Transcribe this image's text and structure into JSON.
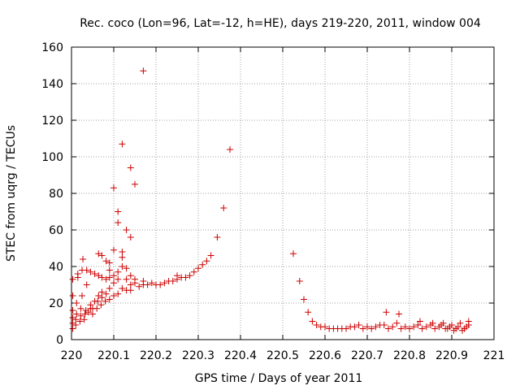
{
  "chart_data": {
    "type": "scatter",
    "title": "Rec. coco (Lon=96, Lat=-12, h=HE), days 219-220, 2011, window 004",
    "xlabel": "GPS time / Days of year 2011",
    "ylabel": "STEC from uqrg / TECUs",
    "xlim": [
      220,
      221
    ],
    "ylim": [
      0,
      160
    ],
    "xticks": [
      "220",
      "220.1",
      "220.2",
      "220.3",
      "220.4",
      "220.5",
      "220.6",
      "220.7",
      "220.8",
      "220.9",
      "221"
    ],
    "yticks": [
      "0",
      "20",
      "40",
      "60",
      "80",
      "100",
      "120",
      "140",
      "160"
    ],
    "grid": true,
    "marker": "+",
    "color": "#cc0000",
    "points": [
      [
        220.003,
        6
      ],
      [
        220.003,
        9
      ],
      [
        220.003,
        12
      ],
      [
        220.003,
        16
      ],
      [
        220.003,
        24
      ],
      [
        220.003,
        33
      ],
      [
        220.01,
        8
      ],
      [
        220.01,
        11
      ],
      [
        220.012,
        14
      ],
      [
        220.012,
        20
      ],
      [
        220.015,
        34
      ],
      [
        220.015,
        36
      ],
      [
        220.02,
        10
      ],
      [
        220.022,
        13
      ],
      [
        220.022,
        17
      ],
      [
        220.025,
        24
      ],
      [
        220.025,
        38
      ],
      [
        220.027,
        44
      ],
      [
        220.03,
        11
      ],
      [
        220.032,
        14
      ],
      [
        220.034,
        16
      ],
      [
        220.036,
        30
      ],
      [
        220.036,
        38
      ],
      [
        220.04,
        15
      ],
      [
        220.045,
        17
      ],
      [
        220.045,
        19
      ],
      [
        220.045,
        37
      ],
      [
        220.05,
        14
      ],
      [
        220.05,
        17
      ],
      [
        220.055,
        21
      ],
      [
        220.055,
        36
      ],
      [
        220.06,
        17
      ],
      [
        220.062,
        21
      ],
      [
        220.064,
        24
      ],
      [
        220.064,
        35
      ],
      [
        220.064,
        47
      ],
      [
        220.07,
        19
      ],
      [
        220.072,
        23
      ],
      [
        220.072,
        26
      ],
      [
        220.072,
        34
      ],
      [
        220.072,
        46
      ],
      [
        220.08,
        21
      ],
      [
        220.082,
        25
      ],
      [
        220.082,
        33
      ],
      [
        220.082,
        43
      ],
      [
        220.09,
        22
      ],
      [
        220.09,
        28
      ],
      [
        220.09,
        34
      ],
      [
        220.09,
        38
      ],
      [
        220.09,
        42
      ],
      [
        220.1,
        24
      ],
      [
        220.1,
        31
      ],
      [
        220.1,
        35
      ],
      [
        220.1,
        49
      ],
      [
        220.1,
        83
      ],
      [
        220.11,
        25
      ],
      [
        220.11,
        33
      ],
      [
        220.11,
        37
      ],
      [
        220.11,
        64
      ],
      [
        220.11,
        70
      ],
      [
        220.12,
        28
      ],
      [
        220.12,
        40
      ],
      [
        220.12,
        45
      ],
      [
        220.12,
        48
      ],
      [
        220.12,
        107
      ],
      [
        220.13,
        27
      ],
      [
        220.13,
        33
      ],
      [
        220.13,
        39
      ],
      [
        220.13,
        60
      ],
      [
        220.14,
        27
      ],
      [
        220.14,
        30
      ],
      [
        220.14,
        35
      ],
      [
        220.14,
        56
      ],
      [
        220.14,
        94
      ],
      [
        220.15,
        31
      ],
      [
        220.15,
        33
      ],
      [
        220.15,
        85
      ],
      [
        220.16,
        29
      ],
      [
        220.17,
        30
      ],
      [
        220.17,
        32
      ],
      [
        220.17,
        147
      ],
      [
        220.18,
        30
      ],
      [
        220.19,
        31
      ],
      [
        220.2,
        30
      ],
      [
        220.21,
        30
      ],
      [
        220.22,
        31
      ],
      [
        220.23,
        32
      ],
      [
        220.24,
        32
      ],
      [
        220.25,
        33
      ],
      [
        220.25,
        35
      ],
      [
        220.26,
        34
      ],
      [
        220.27,
        34
      ],
      [
        220.28,
        35
      ],
      [
        220.29,
        37
      ],
      [
        220.3,
        39
      ],
      [
        220.31,
        41
      ],
      [
        220.32,
        43
      ],
      [
        220.33,
        46
      ],
      [
        220.345,
        56
      ],
      [
        220.36,
        72
      ],
      [
        220.375,
        104
      ],
      [
        220.525,
        47
      ],
      [
        220.54,
        32
      ],
      [
        220.55,
        22
      ],
      [
        220.56,
        15
      ],
      [
        220.57,
        10
      ],
      [
        220.58,
        8
      ],
      [
        220.59,
        7
      ],
      [
        220.6,
        7
      ],
      [
        220.61,
        6
      ],
      [
        220.62,
        6
      ],
      [
        220.63,
        6
      ],
      [
        220.64,
        6
      ],
      [
        220.65,
        6
      ],
      [
        220.66,
        7
      ],
      [
        220.67,
        7
      ],
      [
        220.68,
        8
      ],
      [
        220.69,
        6
      ],
      [
        220.7,
        7
      ],
      [
        220.71,
        6
      ],
      [
        220.72,
        7
      ],
      [
        220.73,
        8
      ],
      [
        220.74,
        8
      ],
      [
        220.745,
        15
      ],
      [
        220.75,
        6
      ],
      [
        220.76,
        7
      ],
      [
        220.77,
        9
      ],
      [
        220.775,
        14
      ],
      [
        220.78,
        6
      ],
      [
        220.79,
        7
      ],
      [
        220.8,
        6
      ],
      [
        220.81,
        7
      ],
      [
        220.82,
        8
      ],
      [
        220.825,
        10
      ],
      [
        220.83,
        6
      ],
      [
        220.84,
        7
      ],
      [
        220.85,
        8
      ],
      [
        220.855,
        9
      ],
      [
        220.86,
        6
      ],
      [
        220.87,
        7
      ],
      [
        220.875,
        8
      ],
      [
        220.88,
        9
      ],
      [
        220.885,
        6
      ],
      [
        220.89,
        6
      ],
      [
        220.895,
        7
      ],
      [
        220.9,
        8
      ],
      [
        220.905,
        5
      ],
      [
        220.91,
        6
      ],
      [
        220.915,
        7
      ],
      [
        220.92,
        9
      ],
      [
        220.925,
        5
      ],
      [
        220.93,
        6
      ],
      [
        220.935,
        7
      ],
      [
        220.94,
        8
      ],
      [
        220.94,
        10
      ]
    ]
  }
}
